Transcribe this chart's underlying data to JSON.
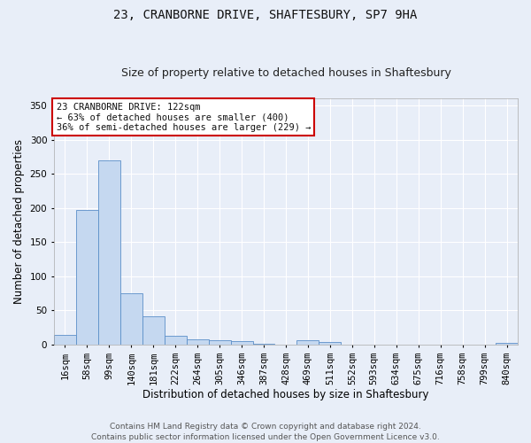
{
  "title": "23, CRANBORNE DRIVE, SHAFTESBURY, SP7 9HA",
  "subtitle": "Size of property relative to detached houses in Shaftesbury",
  "xlabel": "Distribution of detached houses by size in Shaftesbury",
  "ylabel": "Number of detached properties",
  "footer_line1": "Contains HM Land Registry data © Crown copyright and database right 2024.",
  "footer_line2": "Contains public sector information licensed under the Open Government Licence v3.0.",
  "bin_labels": [
    "16sqm",
    "58sqm",
    "99sqm",
    "140sqm",
    "181sqm",
    "222sqm",
    "264sqm",
    "305sqm",
    "346sqm",
    "387sqm",
    "428sqm",
    "469sqm",
    "511sqm",
    "552sqm",
    "593sqm",
    "634sqm",
    "675sqm",
    "716sqm",
    "758sqm",
    "799sqm",
    "840sqm"
  ],
  "bar_heights": [
    14,
    197,
    270,
    75,
    41,
    13,
    8,
    6,
    5,
    1,
    0,
    6,
    3,
    0,
    0,
    0,
    0,
    0,
    0,
    0,
    2
  ],
  "bar_color": "#c5d8f0",
  "bar_edge_color": "#5b8fc9",
  "ylim": [
    0,
    360
  ],
  "yticks": [
    0,
    50,
    100,
    150,
    200,
    250,
    300,
    350
  ],
  "annotation_text": "23 CRANBORNE DRIVE: 122sqm\n← 63% of detached houses are smaller (400)\n36% of semi-detached houses are larger (229) →",
  "annotation_box_color": "#ffffff",
  "annotation_box_edge_color": "#cc0000",
  "bg_color": "#e8eef8",
  "plot_bg_color": "#e8eef8",
  "grid_color": "#ffffff",
  "title_fontsize": 10,
  "subtitle_fontsize": 9,
  "xlabel_fontsize": 8.5,
  "ylabel_fontsize": 8.5,
  "tick_fontsize": 7.5,
  "annotation_fontsize": 7.5,
  "footer_fontsize": 6.5
}
